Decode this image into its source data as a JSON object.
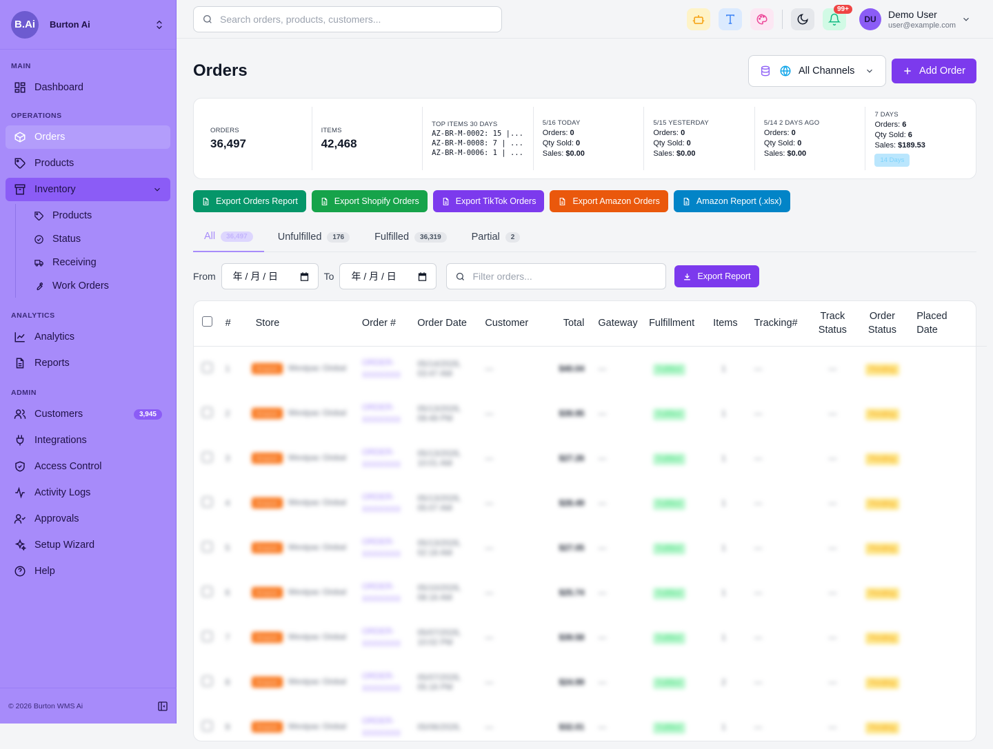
{
  "brand": {
    "logo": "B.Ai",
    "name": "Burton Ai",
    "toggle_icon": "chevrons-up-down-icon"
  },
  "sidebar": {
    "sections": {
      "main": "MAIN",
      "operations": "OPERATIONS",
      "analytics": "ANALYTICS",
      "admin": "ADMIN"
    },
    "items": {
      "dashboard": "Dashboard",
      "orders": "Orders",
      "products": "Products",
      "inventory": "Inventory",
      "inv_products": "Products",
      "inv_status": "Status",
      "inv_receiving": "Receiving",
      "inv_work_orders": "Work Orders",
      "analytics": "Analytics",
      "reports": "Reports",
      "customers": "Customers",
      "customers_count": "3,945",
      "integrations": "Integrations",
      "access_control": "Access Control",
      "activity_logs": "Activity Logs",
      "approvals": "Approvals",
      "setup_wizard": "Setup Wizard",
      "help": "Help"
    },
    "footer": "© 2026 Burton WMS Ai"
  },
  "topbar": {
    "search_placeholder": "Search orders, products, customers...",
    "notifications_badge": "99+",
    "user": {
      "initials": "DU",
      "name": "Demo User",
      "email": "user@example.com"
    }
  },
  "page": {
    "title": "Orders",
    "channel": "All Channels",
    "add_order": "Add Order"
  },
  "stats": {
    "orders_label": "ORDERS",
    "orders_value": "36,497",
    "items_label": "ITEMS",
    "items_value": "42,468",
    "top_items_label": "TOP ITEMS 30 DAYS",
    "top_items": [
      "AZ-BR-M-0002: 15 |...",
      "AZ-BR-M-0008: 7 | ...",
      "AZ-BR-M-0006: 1 | ..."
    ],
    "periods": [
      {
        "label": "5/16 TODAY",
        "orders": "0",
        "qty": "0",
        "sales": "$0.00"
      },
      {
        "label": "5/15 YESTERDAY",
        "orders": "0",
        "qty": "0",
        "sales": "$0.00"
      },
      {
        "label": "5/14 2 DAYS AGO",
        "orders": "0",
        "qty": "0",
        "sales": "$0.00"
      },
      {
        "label": "7 DAYS",
        "orders": "6",
        "qty": "6",
        "sales": "$189.53"
      }
    ],
    "orders_prefix": "Orders:",
    "qty_prefix": "Qty Sold:",
    "sales_prefix": "Sales:",
    "days_chip": "14 Days"
  },
  "exports": {
    "orders": "Export Orders Report",
    "shopify": "Export Shopify Orders",
    "tiktok": "Export TikTok Orders",
    "amazon": "Export Amazon Orders",
    "amazon_xlsx": "Amazon Report (.xlsx)"
  },
  "tabs": [
    {
      "label": "All",
      "count": "36,497"
    },
    {
      "label": "Unfulfilled",
      "count": "176"
    },
    {
      "label": "Fulfilled",
      "count": "36,319"
    },
    {
      "label": "Partial",
      "count": "2"
    }
  ],
  "filters": {
    "from": "From",
    "to": "To",
    "date_placeholder": "年 / 月 / 日",
    "filter_placeholder": "Filter orders...",
    "export_report": "Export Report"
  },
  "table": {
    "columns": {
      "num": "#",
      "store": "Store",
      "order": "Order #",
      "date": "Order Date",
      "customer": "Customer",
      "total": "Total",
      "gateway": "Gateway",
      "fulfillment": "Fulfillment",
      "items": "Items",
      "tracking": "Tracking#",
      "track_status_1": "Track",
      "track_status_2": "Status",
      "order_status_1": "Order",
      "order_status_2": "Status",
      "placed_1": "Placed",
      "placed_2": "Date"
    },
    "rows": [
      {
        "n": "1",
        "badge": "Amazon",
        "store": "Westpac Global",
        "order_1": "ORDER-",
        "order_2": "XXXXXXX",
        "date_1": "05/14/2026,",
        "date_2": "03:47 AM",
        "customer": "—",
        "total": "$40.04",
        "gateway": "—",
        "fulfillment": "Fulfilled",
        "items": "1",
        "tracking": "—",
        "track_status": "—",
        "status": "Pending"
      },
      {
        "n": "2",
        "badge": "Amazon",
        "store": "Westpac Global",
        "order_1": "ORDER-",
        "order_2": "XXXXXXX",
        "date_1": "05/13/2026,",
        "date_2": "09:49 PM",
        "customer": "—",
        "total": "$39.95",
        "gateway": "—",
        "fulfillment": "Fulfilled",
        "items": "1",
        "tracking": "—",
        "track_status": "—",
        "status": "Pending"
      },
      {
        "n": "3",
        "badge": "Amazon",
        "store": "Westpac Global",
        "order_1": "ORDER-",
        "order_2": "XXXXXXX",
        "date_1": "05/13/2026,",
        "date_2": "10:01 AM",
        "customer": "—",
        "total": "$27.26",
        "gateway": "—",
        "fulfillment": "Fulfilled",
        "items": "1",
        "tracking": "—",
        "track_status": "—",
        "status": "Pending"
      },
      {
        "n": "4",
        "badge": "Amazon",
        "store": "Westpac Global",
        "order_1": "ORDER-",
        "order_2": "XXXXXXX",
        "date_1": "05/13/2026,",
        "date_2": "05:07 AM",
        "customer": "—",
        "total": "$28.49",
        "gateway": "—",
        "fulfillment": "Fulfilled",
        "items": "1",
        "tracking": "—",
        "track_status": "—",
        "status": "Pending"
      },
      {
        "n": "5",
        "badge": "Amazon",
        "store": "Westpac Global",
        "order_1": "ORDER-",
        "order_2": "XXXXXXX",
        "date_1": "05/13/2026,",
        "date_2": "02:18 AM",
        "customer": "—",
        "total": "$27.05",
        "gateway": "—",
        "fulfillment": "Fulfilled",
        "items": "1",
        "tracking": "—",
        "track_status": "—",
        "status": "Pending"
      },
      {
        "n": "6",
        "badge": "Amazon",
        "store": "Westpac Global",
        "order_1": "ORDER-",
        "order_2": "XXXXXXX",
        "date_1": "05/10/2026,",
        "date_2": "08:16 AM",
        "customer": "—",
        "total": "$25.74",
        "gateway": "—",
        "fulfillment": "Fulfilled",
        "items": "1",
        "tracking": "—",
        "track_status": "—",
        "status": "Pending"
      },
      {
        "n": "7",
        "badge": "Amazon",
        "store": "Westpac Global",
        "order_1": "ORDER-",
        "order_2": "XXXXXXX",
        "date_1": "05/07/2026,",
        "date_2": "10:02 PM",
        "customer": "—",
        "total": "$39.58",
        "gateway": "—",
        "fulfillment": "Fulfilled",
        "items": "1",
        "tracking": "—",
        "track_status": "—",
        "status": "Pending"
      },
      {
        "n": "8",
        "badge": "Amazon",
        "store": "Westpac Global",
        "order_1": "ORDER-",
        "order_2": "XXXXXXX",
        "date_1": "05/07/2026,",
        "date_2": "05:16 PM",
        "customer": "—",
        "total": "$24.99",
        "gateway": "—",
        "fulfillment": "Fulfilled",
        "items": "2",
        "tracking": "—",
        "track_status": "—",
        "status": "Pending"
      },
      {
        "n": "9",
        "badge": "Amazon",
        "store": "Westpac Global",
        "order_1": "ORDER-",
        "order_2": "XXXXXXX",
        "date_1": "05/06/2026,",
        "date_2": "",
        "customer": "—",
        "total": "$32.01",
        "gateway": "—",
        "fulfillment": "Fulfilled",
        "items": "1",
        "tracking": "—",
        "track_status": "—",
        "status": "Pending"
      }
    ]
  },
  "colors": {
    "sidebar": "#a78bfa",
    "accent": "#7c3aed",
    "export_orders": "#059669",
    "export_shopify": "#16a34a",
    "export_tiktok": "#7c3aed",
    "export_amazon": "#ea580c",
    "export_amazon_xlsx": "#0284c7"
  }
}
